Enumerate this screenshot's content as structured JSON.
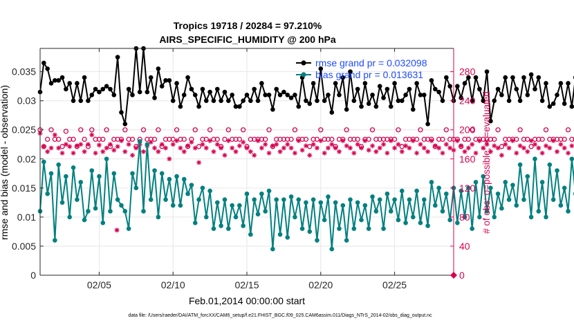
{
  "chart_data": {
    "type": "line",
    "title": "Tropics 19718 / 20284 = 97.210%",
    "subtitle": "AIRS_SPECIFIC_HUMIDITY @ 200 hPa",
    "xlabel": "Feb.01,2014 00:00:00 start",
    "ylabel": "rmse and bias (model - observation)",
    "ylabel_right": "# of obs: o=possible; ∗=evaluated",
    "footnote": "data file: /Users/raeder/DAI/ATM_forcXX/CAM6_setup/f.e21.FHIST_BGC.f09_025.CAM6assim.011/Diags_NTrS_2014-02/obs_diag_output.nc",
    "xlim": [
      1,
      29
    ],
    "ylim": [
      0,
      0.039
    ],
    "ylim_right": [
      0,
      312
    ],
    "x_ticks": [
      5,
      10,
      15,
      20,
      25
    ],
    "x_tick_labels": [
      "02/05",
      "02/10",
      "02/15",
      "02/20",
      "02/25"
    ],
    "y_ticks": [
      0,
      0.005,
      0.01,
      0.015,
      0.02,
      0.025,
      0.03,
      0.035
    ],
    "y_tick_labels": [
      "0",
      "0.005",
      "0.01",
      "0.015",
      "0.02",
      "0.025",
      "0.03",
      "0.035"
    ],
    "y_ticks_right": [
      0,
      40,
      80,
      120,
      160,
      200,
      240,
      280
    ],
    "y_tick_labels_right": [
      "0",
      "40",
      "80",
      "120",
      "160",
      "200",
      "240",
      "280"
    ],
    "grid": true,
    "legend_position": "top-right",
    "x_start": 1,
    "x_step": 0.25,
    "series": [
      {
        "name": "rmse",
        "legend_label": "rmse grand pr = 0.032098",
        "color": "#000000",
        "axis": "left",
        "marker": "dot",
        "values": [
          0.0315,
          0.0365,
          0.0355,
          0.033,
          0.0335,
          0.0335,
          0.034,
          0.032,
          0.033,
          0.03,
          0.033,
          0.03,
          0.034,
          0.03,
          0.031,
          0.032,
          0.0315,
          0.032,
          0.0325,
          0.032,
          0.031,
          0.0375,
          0.028,
          0.026,
          0.032,
          0.031,
          0.039,
          0.0315,
          0.039,
          0.0315,
          0.034,
          0.0305,
          0.0355,
          0.0325,
          0.0335,
          0.0335,
          0.03,
          0.033,
          0.029,
          0.031,
          0.034,
          0.032,
          0.031,
          0.029,
          0.032,
          0.03,
          0.0315,
          0.03,
          0.032,
          0.03,
          0.0315,
          0.03,
          0.031,
          0.029,
          0.029,
          0.03,
          0.031,
          0.03,
          0.032,
          0.03,
          0.033,
          0.031,
          0.031,
          0.0285,
          0.032,
          0.031,
          0.0315,
          0.031,
          0.0305,
          0.031,
          0.029,
          0.034,
          0.03,
          0.0295,
          0.033,
          0.03,
          0.0355,
          0.03,
          0.031,
          0.028,
          0.033,
          0.031,
          0.034,
          0.0285,
          0.035,
          0.03,
          0.032,
          0.029,
          0.033,
          0.0295,
          0.031,
          0.029,
          0.0325,
          0.0305,
          0.032,
          0.029,
          0.033,
          0.03,
          0.03,
          0.031,
          0.032,
          0.0285,
          0.033,
          0.031,
          0.031,
          0.026,
          0.0335,
          0.032,
          0.0315,
          0.03,
          0.034,
          0.0325,
          0.03,
          0.0325,
          0.0305,
          0.033,
          0.034,
          0.03,
          0.034,
          0.032,
          0.03,
          0.035,
          0.0265,
          0.03,
          0.032,
          0.031,
          0.034,
          0.03,
          0.034,
          0.032,
          0.03,
          0.034,
          0.031,
          0.0345,
          0.032,
          0.034,
          0.03,
          0.033,
          0.029,
          0.0295,
          0.031,
          0.033,
          0.0295,
          0.033,
          0.029,
          0.034,
          0.031,
          0.0335,
          0.028,
          0.035,
          0.029,
          0.031,
          0.033,
          0.034,
          0.03,
          0.034,
          0.03,
          0.033
        ]
      },
      {
        "name": "bias",
        "legend_label": "bias grand pr = 0.013631",
        "color": "#00807f",
        "axis": "left",
        "marker": "dot",
        "values": [
          0.011,
          0.0195,
          0.014,
          0.0175,
          0.006,
          0.019,
          0.0125,
          0.017,
          0.01,
          0.0185,
          0.013,
          0.016,
          0.0095,
          0.011,
          0.018,
          0.0115,
          0.017,
          0.009,
          0.02,
          0.011,
          0.0175,
          0.013,
          0.012,
          0.011,
          0.008,
          0.0175,
          0.015,
          0.023,
          0.011,
          0.0225,
          0.013,
          0.018,
          0.01,
          0.0175,
          0.013,
          0.0165,
          0.012,
          0.017,
          0.012,
          0.0165,
          0.014,
          0.0155,
          0.009,
          0.013,
          0.015,
          0.01,
          0.0145,
          0.008,
          0.0125,
          0.0085,
          0.013,
          0.008,
          0.012,
          0.01,
          0.012,
          0.0085,
          0.014,
          0.007,
          0.013,
          0.0105,
          0.014,
          0.011,
          0.0145,
          0.0045,
          0.013,
          0.007,
          0.013,
          0.0065,
          0.0135,
          0.01,
          0.013,
          0.008,
          0.0125,
          0.0075,
          0.013,
          0.006,
          0.0125,
          0.0095,
          0.0135,
          0.0045,
          0.0125,
          0.008,
          0.012,
          0.006,
          0.013,
          0.008,
          0.0125,
          0.0095,
          0.012,
          0.008,
          0.0135,
          0.011,
          0.013,
          0.008,
          0.014,
          0.011,
          0.013,
          0.0095,
          0.0145,
          0.009,
          0.013,
          0.01,
          0.0145,
          0.009,
          0.013,
          0.0085,
          0.016,
          0.012,
          0.015,
          0.011,
          0.014,
          0.0095,
          0.015,
          0.009,
          0.0145,
          0.01,
          0.015,
          0.008,
          0.016,
          0.01,
          0.017,
          0.011,
          0.015,
          0.01,
          0.014,
          0.0115,
          0.016,
          0.013,
          0.0155,
          0.012,
          0.019,
          0.013,
          0.017,
          0.01,
          0.02,
          0.011,
          0.016,
          0.01,
          0.019,
          0.013,
          0.018,
          0.012,
          0.015,
          0.011,
          0.02,
          0.014,
          0.016,
          0.01,
          0.017,
          0.008,
          0.015,
          0.011,
          0.014,
          0.012,
          0.016,
          0.01,
          0.014,
          0.008,
          0.018,
          0.013,
          0.016,
          0.011,
          0.015,
          0.016
        ]
      },
      {
        "name": "possible",
        "color": "#d6004f",
        "axis": "right",
        "marker": "circle",
        "values": [
          200,
          177,
          187,
          200,
          187,
          187,
          177,
          198,
          187,
          187,
          177,
          200,
          187,
          177,
          200,
          187,
          187,
          187,
          200,
          177,
          187,
          187,
          187,
          200,
          187,
          187,
          177,
          187,
          200,
          187,
          187,
          187,
          200,
          177,
          187,
          187,
          187,
          200,
          187,
          187,
          177,
          187,
          200,
          177,
          187,
          187,
          200,
          187,
          187,
          177,
          187,
          200,
          187,
          187,
          187,
          200,
          177,
          187,
          187,
          187,
          187,
          187,
          200,
          177,
          187,
          187,
          187,
          187,
          187,
          200,
          187,
          187,
          187,
          177,
          187,
          187,
          200,
          187,
          187,
          187,
          177,
          187,
          187,
          200,
          187,
          187,
          187,
          177,
          187,
          187,
          200,
          187,
          187,
          187,
          187,
          187,
          187,
          200,
          177,
          187,
          187,
          187,
          187,
          200,
          187,
          187,
          187,
          177,
          187,
          187,
          200,
          187,
          187,
          187,
          177,
          187,
          187,
          200,
          187,
          187,
          187,
          187,
          187,
          187,
          200,
          177,
          187,
          187,
          187,
          187,
          200,
          187,
          187,
          177,
          187,
          187,
          187,
          200,
          187,
          187,
          187,
          187,
          187,
          200,
          187,
          187,
          187,
          177,
          187,
          187,
          200,
          187,
          187,
          187,
          177,
          200,
          187,
          187,
          187,
          177
        ]
      },
      {
        "name": "evaluated",
        "color": "#d6004f",
        "axis": "right",
        "marker": "star",
        "values": [
          195,
          177,
          170,
          175,
          193,
          175,
          168,
          180,
          177,
          168,
          178,
          180,
          170,
          180,
          193,
          168,
          179,
          170,
          175,
          180,
          172,
          177,
          185,
          170,
          180,
          165,
          175,
          180,
          170,
          178,
          183,
          175,
          170,
          180,
          175,
          160,
          180,
          185,
          175,
          170,
          178,
          183,
          175,
          155,
          180,
          175,
          185,
          170,
          180,
          175,
          165,
          185,
          175,
          170,
          178,
          183,
          175,
          170,
          165,
          185,
          175,
          180,
          168,
          178,
          180,
          170,
          175,
          180,
          175,
          168,
          185,
          172,
          178,
          165,
          180,
          175,
          185,
          168,
          175,
          180,
          175,
          170,
          185,
          178,
          175,
          168,
          180,
          175,
          185,
          172,
          178,
          170,
          175,
          180,
          168,
          185,
          175,
          180,
          170,
          178,
          175,
          185,
          168,
          180,
          175,
          170,
          185,
          178,
          175,
          168,
          180,
          175,
          172,
          185,
          178,
          170,
          175,
          180,
          168,
          185,
          175,
          180,
          170,
          178,
          175,
          165,
          180,
          175,
          185,
          168,
          178,
          175,
          170,
          185,
          180,
          175,
          168,
          178,
          175,
          185,
          170,
          180,
          175,
          168,
          178,
          185,
          170,
          175,
          180,
          172,
          168,
          178,
          185,
          175,
          165,
          180
        ]
      }
    ],
    "outliers": [
      {
        "series": "evaluated",
        "x": 6.2,
        "value": 62
      },
      {
        "series": "possible",
        "x": 29,
        "value": 0
      }
    ]
  }
}
